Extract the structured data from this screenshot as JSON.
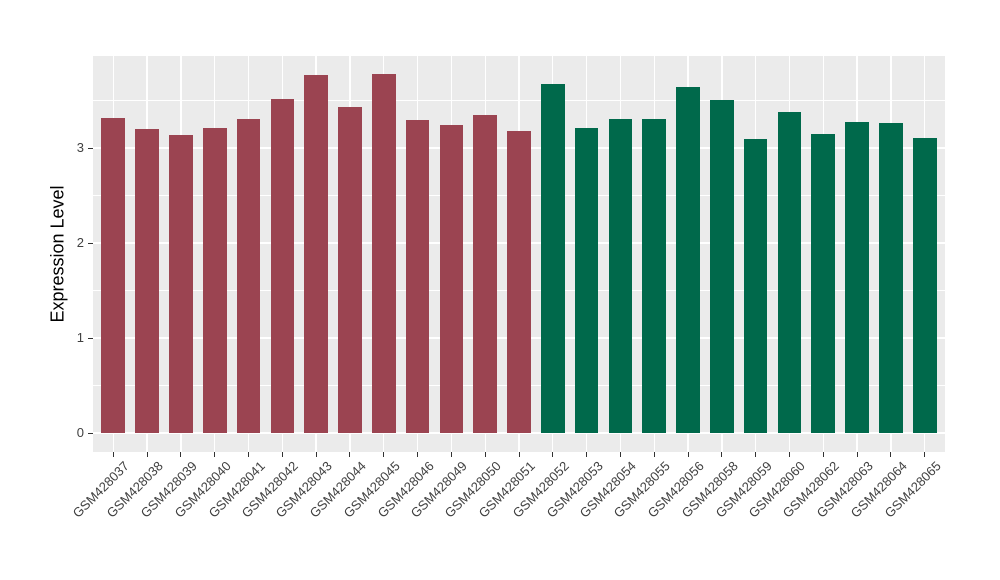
{
  "chart_data": {
    "type": "bar",
    "title": "",
    "xlabel": "",
    "ylabel": "Expression Level",
    "categories": [
      "GSM428037",
      "GSM428038",
      "GSM428039",
      "GSM428040",
      "GSM428041",
      "GSM428042",
      "GSM428043",
      "GSM428044",
      "GSM428045",
      "GSM428046",
      "GSM428049",
      "GSM428050",
      "GSM428051",
      "GSM428052",
      "GSM428053",
      "GSM428054",
      "GSM428055",
      "GSM428056",
      "GSM428058",
      "GSM428059",
      "GSM428060",
      "GSM428062",
      "GSM428063",
      "GSM428064",
      "GSM428065"
    ],
    "values": [
      3.32,
      3.2,
      3.14,
      3.21,
      3.31,
      3.52,
      3.77,
      3.43,
      3.78,
      3.3,
      3.24,
      3.35,
      3.18,
      3.67,
      3.21,
      3.31,
      3.31,
      3.64,
      3.51,
      3.09,
      3.38,
      3.15,
      3.27,
      3.26,
      3.11
    ],
    "groups": [
      "group1",
      "group1",
      "group1",
      "group1",
      "group1",
      "group1",
      "group1",
      "group1",
      "group1",
      "group1",
      "group1",
      "group1",
      "group1",
      "group2",
      "group2",
      "group2",
      "group2",
      "group2",
      "group2",
      "group2",
      "group2",
      "group2",
      "group2",
      "group2",
      "group2"
    ],
    "group_colors": {
      "group1": "#9B4451",
      "group2": "#00694B"
    },
    "yticks": [
      0,
      1,
      2,
      3
    ],
    "yminor": [
      0.5,
      1.5,
      2.5,
      3.5
    ],
    "ylim": [
      0,
      3.97
    ],
    "legend": "none",
    "grid": "on",
    "panel_bg": "#EBEBEB",
    "grid_color": "#FFFFFF",
    "tick_color": "#333333",
    "tick_label_color": "#404040",
    "axis_title_color": "#000000"
  }
}
